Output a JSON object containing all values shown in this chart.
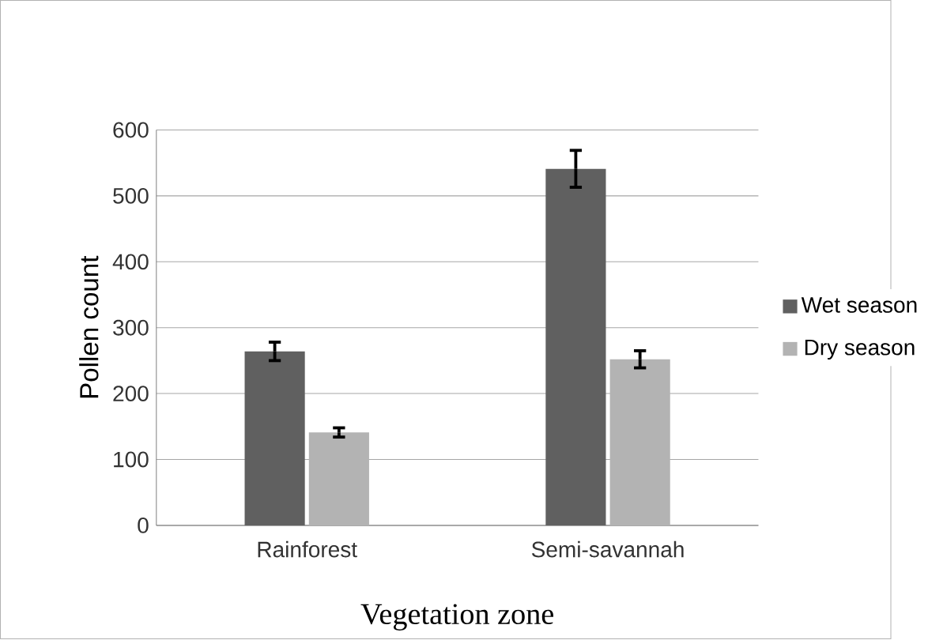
{
  "chart_data": {
    "type": "bar",
    "xlabel": "Vegetation zone",
    "ylabel": "Pollen count",
    "categories": [
      "Rainforest",
      "Semi-savannah"
    ],
    "series": [
      {
        "name": "Wet season",
        "color": "#606060",
        "values": [
          264,
          541
        ],
        "errors": [
          14,
          28
        ]
      },
      {
        "name": "Dry season",
        "color": "#b3b3b3",
        "values": [
          141,
          252
        ],
        "errors": [
          7,
          13
        ]
      }
    ],
    "ylim": [
      0,
      600
    ],
    "yticks": [
      0,
      100,
      200,
      300,
      400,
      500,
      600
    ],
    "grid": "y",
    "legend": "right"
  }
}
